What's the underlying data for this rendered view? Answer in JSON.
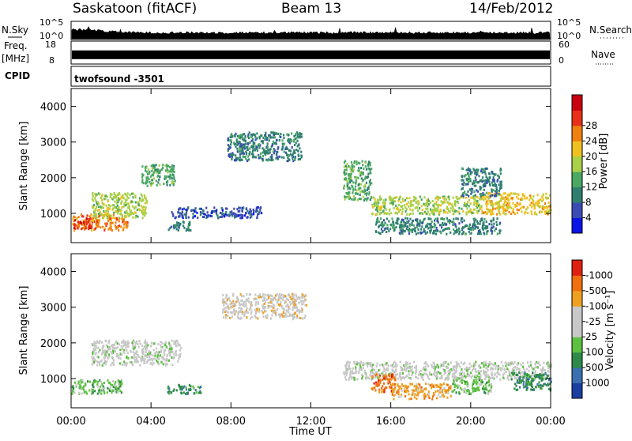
{
  "header": {
    "station": "Saskatoon (fitACF)",
    "beam": "Beam 13",
    "date": "14/Feb/2012"
  },
  "noise_panel": {
    "left_label": "N.Sky",
    "left_ticks": [
      "10^5",
      "10^0"
    ],
    "right_ticks": [
      "10^5",
      "10^0"
    ],
    "right_label": "N.Search"
  },
  "freq_panel": {
    "left_label_top": "Freq.",
    "left_label_unit": "[MHz]",
    "left_ticks": [
      "18",
      "8"
    ],
    "right_ticks": [
      "60",
      "0"
    ],
    "right_label": "Nave",
    "band_fraction": 0.42
  },
  "cpid_panel": {
    "label": "CPID",
    "program": "twofsound  -3501"
  },
  "chart_data": [
    {
      "type": "heatmap",
      "name": "power",
      "ylabel": "Slant Range [km]",
      "xlabel": "",
      "ylim": [
        180,
        4500
      ],
      "yticks": [
        1000,
        2000,
        3000,
        4000
      ],
      "xlim": [
        0,
        24
      ],
      "xticks": [
        "00:00",
        "04:00",
        "08:00",
        "12:00",
        "16:00",
        "20:00",
        "00:00"
      ],
      "colorbar": {
        "label": "Power [dB]",
        "ticks": [
          4,
          8,
          12,
          16,
          20,
          24,
          28
        ],
        "colors": [
          "#0a14e6",
          "#3a4bb3",
          "#2f7f6f",
          "#4aa862",
          "#a8d048",
          "#f0c020",
          "#f08010",
          "#e83018",
          "#c80010"
        ]
      },
      "echo_regions": [
        {
          "t": [
            0.0,
            2.8
          ],
          "r": [
            550,
            1000
          ],
          "level": 24
        },
        {
          "t": [
            0.0,
            1.0
          ],
          "r": [
            600,
            900
          ],
          "level": 28
        },
        {
          "t": [
            1.0,
            3.8
          ],
          "r": [
            900,
            1600
          ],
          "level": 16
        },
        {
          "t": [
            3.5,
            5.2
          ],
          "r": [
            1800,
            2400
          ],
          "level": 12
        },
        {
          "t": [
            5.0,
            9.5
          ],
          "r": [
            900,
            1200
          ],
          "level": 6
        },
        {
          "t": [
            4.8,
            6.0
          ],
          "r": [
            550,
            800
          ],
          "level": 10
        },
        {
          "t": [
            7.8,
            11.5
          ],
          "r": [
            2500,
            3300
          ],
          "level": 8
        },
        {
          "t": [
            13.6,
            15.0
          ],
          "r": [
            1400,
            2500
          ],
          "level": 14
        },
        {
          "t": [
            15.0,
            20.5
          ],
          "r": [
            1000,
            1500
          ],
          "level": 18
        },
        {
          "t": [
            20.5,
            24.0
          ],
          "r": [
            1000,
            1600
          ],
          "level": 22
        },
        {
          "t": [
            15.2,
            21.5
          ],
          "r": [
            450,
            900
          ],
          "level": 10
        },
        {
          "t": [
            19.5,
            21.5
          ],
          "r": [
            1500,
            2300
          ],
          "level": 10
        }
      ]
    },
    {
      "type": "heatmap",
      "name": "velocity",
      "ylabel": "Slant Range [km]",
      "xlabel": "Time UT",
      "ylim": [
        180,
        4500
      ],
      "yticks": [
        1000,
        2000,
        3000,
        4000
      ],
      "xlim": [
        0,
        24
      ],
      "xticks": [
        "00:00",
        "04:00",
        "08:00",
        "12:00",
        "16:00",
        "20:00",
        "00:00"
      ],
      "colorbar": {
        "label": "Velocity [m s⁻¹]",
        "ticks": [
          "1000",
          "500",
          "100",
          "25",
          "-25",
          "-100",
          "-500",
          "-1000"
        ],
        "colors": [
          "#1a3fa0",
          "#3a6fb0",
          "#2e8a4a",
          "#5cc040",
          "#c8c8c8",
          "#c8c8c8",
          "#f0a020",
          "#f07010",
          "#e02010"
        ]
      },
      "echo_regions": [
        {
          "t": [
            0.0,
            2.5
          ],
          "r": [
            600,
            1000
          ],
          "level": "100"
        },
        {
          "t": [
            1.0,
            5.5
          ],
          "r": [
            1400,
            2100
          ],
          "level": "25"
        },
        {
          "t": [
            4.8,
            6.5
          ],
          "r": [
            600,
            850
          ],
          "level": "500"
        },
        {
          "t": [
            7.5,
            11.8
          ],
          "r": [
            2700,
            3400
          ],
          "level": "-25"
        },
        {
          "t": [
            13.6,
            24.0
          ],
          "r": [
            1000,
            1500
          ],
          "level": "25"
        },
        {
          "t": [
            15.0,
            16.2
          ],
          "r": [
            650,
            1150
          ],
          "level": "-500"
        },
        {
          "t": [
            16.0,
            19.0
          ],
          "r": [
            450,
            900
          ],
          "level": "-100"
        },
        {
          "t": [
            19.0,
            21.0
          ],
          "r": [
            600,
            1000
          ],
          "level": "100"
        },
        {
          "t": [
            22.0,
            24.0
          ],
          "r": [
            700,
            1200
          ],
          "level": "500"
        }
      ]
    }
  ]
}
